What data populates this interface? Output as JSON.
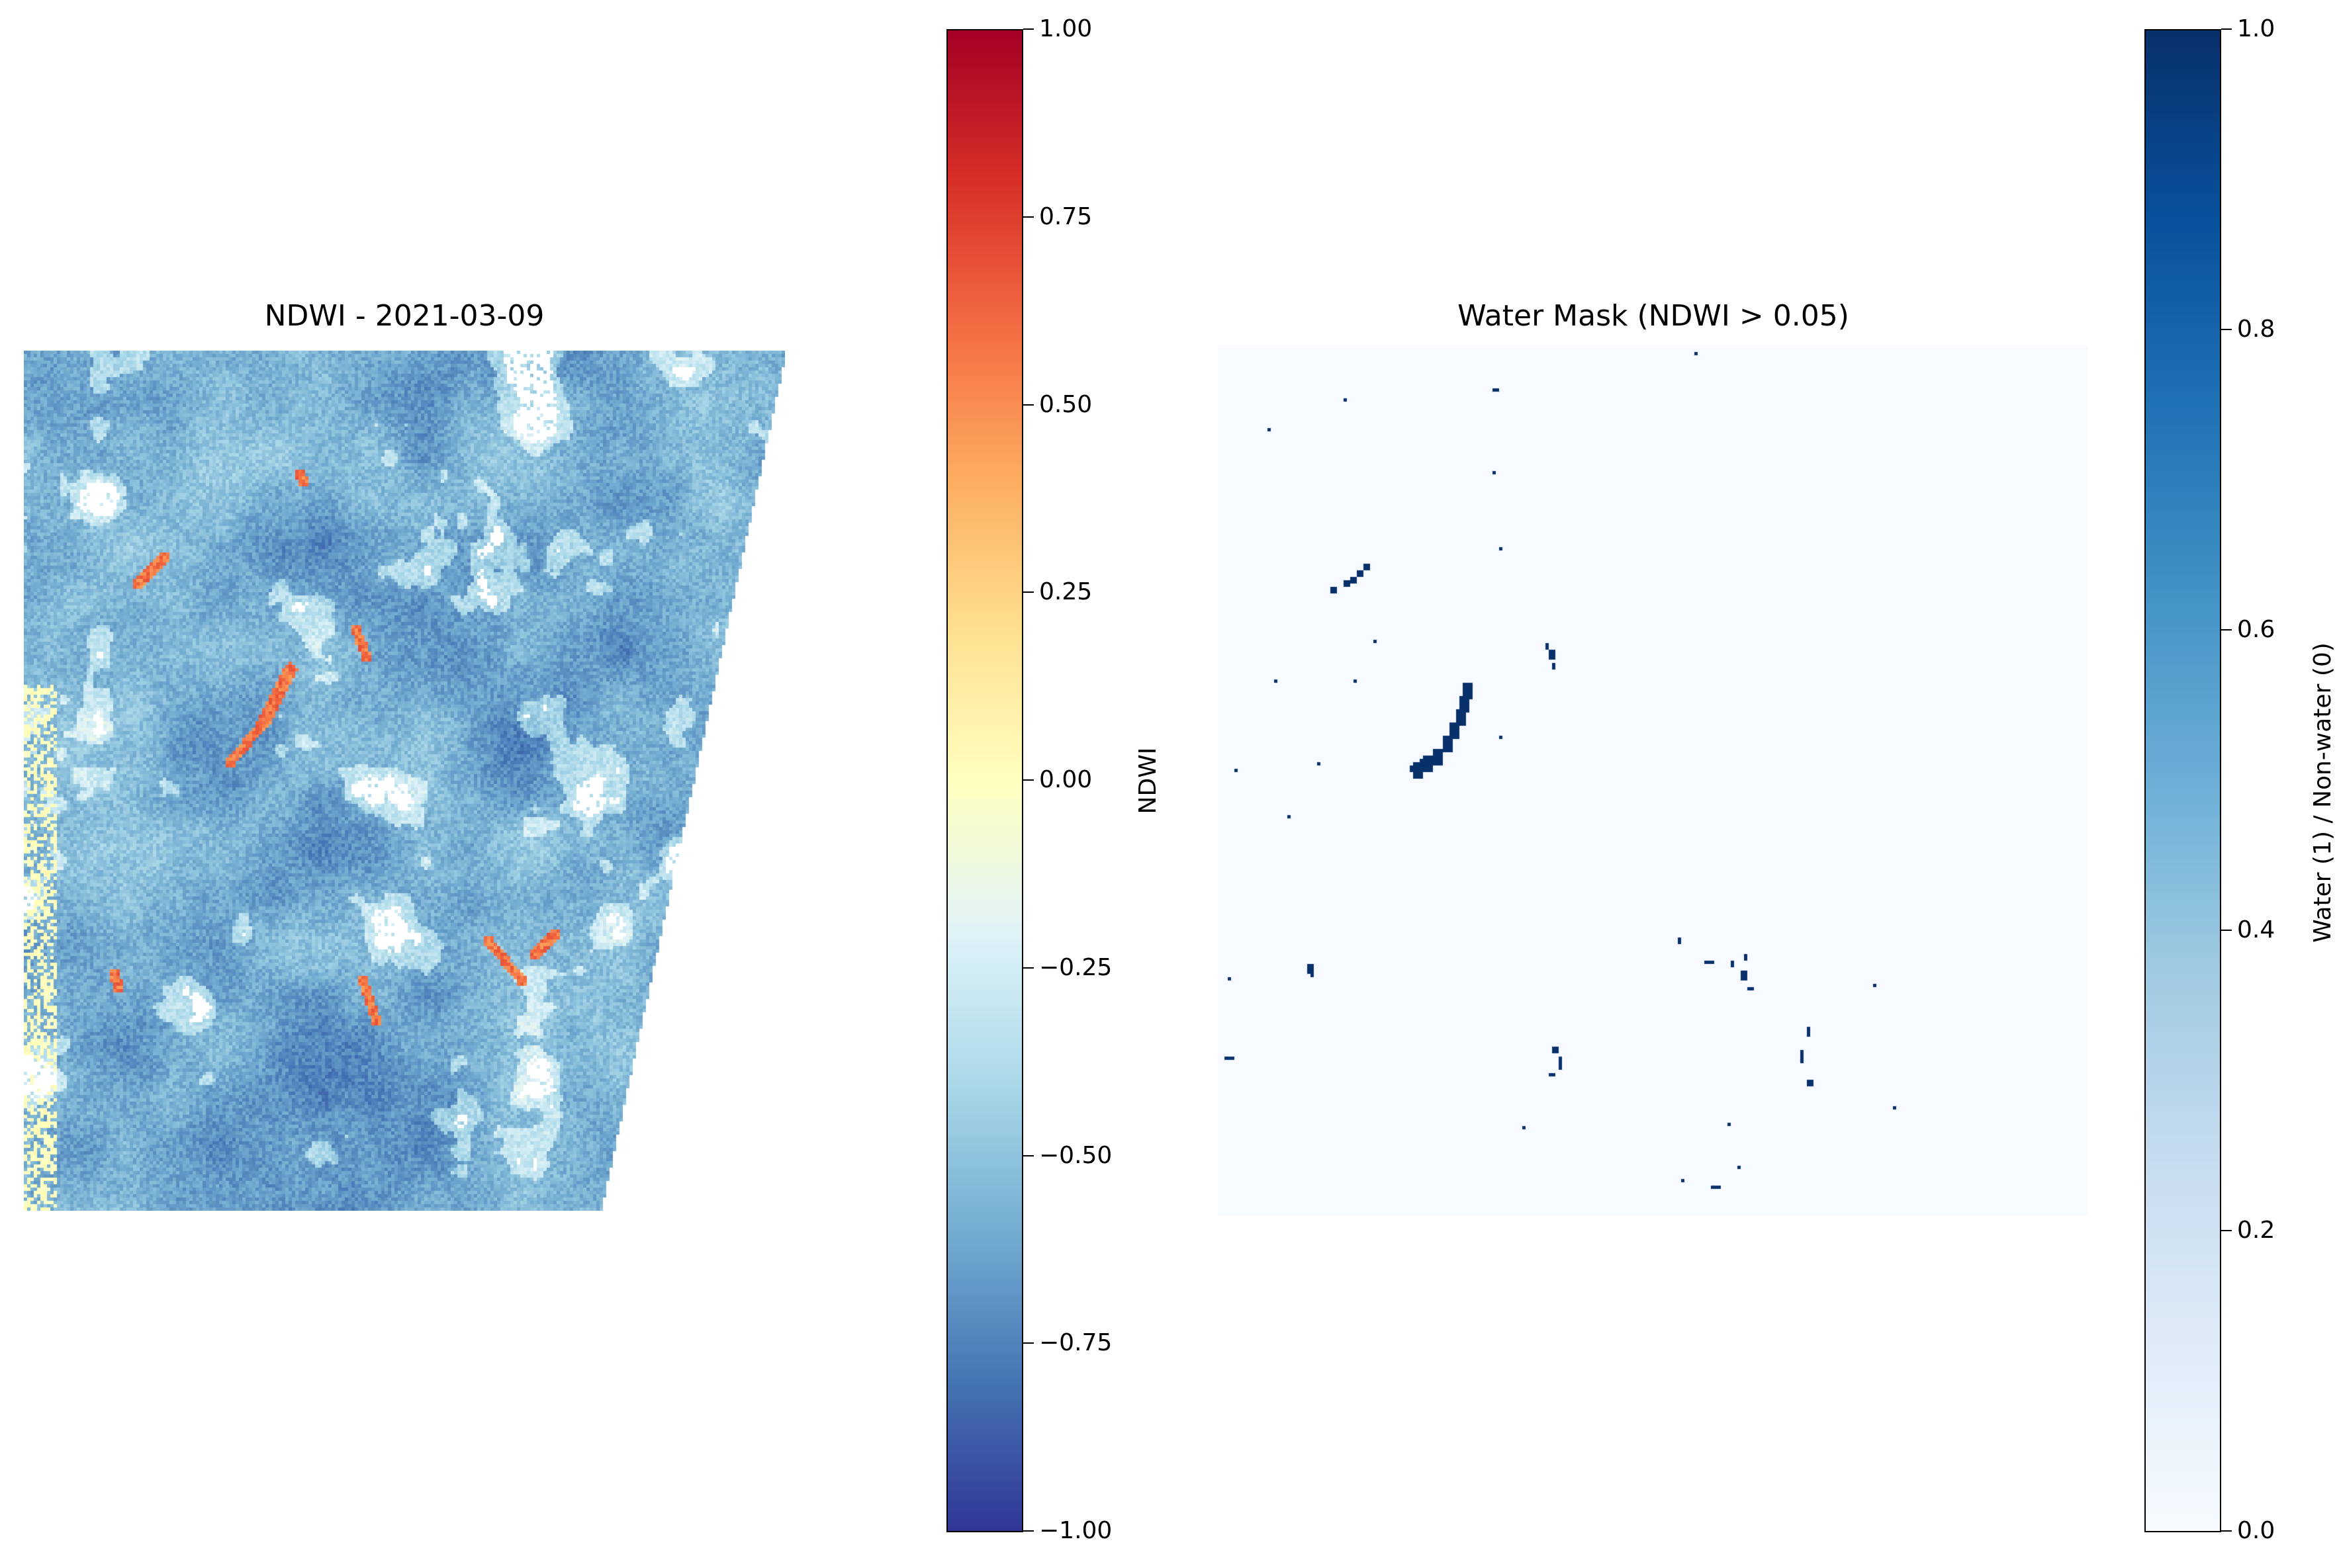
{
  "chart_data": [
    {
      "type": "heatmap",
      "title": "NDWI - 2021-03-09",
      "colormap": "RdYlBu_r",
      "colorbar": {
        "label": "NDWI",
        "range": [
          -1.0,
          1.0
        ],
        "ticks": [
          1.0,
          0.75,
          0.5,
          0.25,
          0.0,
          -0.25,
          -0.5,
          -0.75,
          -1.0
        ],
        "tick_labels": [
          "1.00",
          "0.75",
          "0.50",
          "0.25",
          "0.00",
          "−0.25",
          "−0.50",
          "−0.75",
          "−1.00"
        ]
      },
      "axes": "off",
      "typical_land_value": -0.65,
      "water_features_value": 0.55
    },
    {
      "type": "heatmap",
      "title": "Water Mask (NDWI > 0.05)",
      "colormap": "Blues",
      "threshold": 0.05,
      "colorbar": {
        "label": "Water (1) / Non-water (0)",
        "range": [
          0.0,
          1.0
        ],
        "ticks": [
          1.0,
          0.8,
          0.6,
          0.4,
          0.2,
          0.0
        ],
        "tick_labels": [
          "1.0",
          "0.8",
          "0.6",
          "0.4",
          "0.2",
          "0.0"
        ]
      },
      "axes": "off",
      "background_value": 0,
      "water_value": 1
    }
  ]
}
